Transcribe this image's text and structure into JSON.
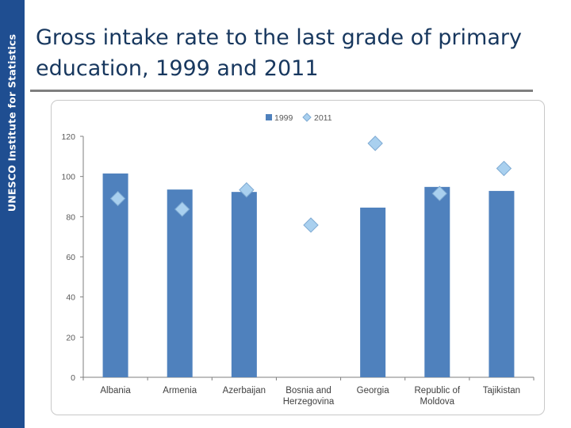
{
  "sidebar": {
    "label": "UNESCO Institute for Statistics"
  },
  "title": "Gross intake rate to the last grade of primary education, 1999 and 2011",
  "colors": {
    "sidebar": "#1f4e91",
    "series_1999": "#4f81bd",
    "series_2011": "#a9d0ef",
    "title": "#17375e"
  },
  "chart_data": {
    "type": "bar",
    "categories": [
      "Albania",
      "Armenia",
      "Azerbaijan",
      "Bosnia and Herzegovina",
      "Georgia",
      "Republic of Moldova",
      "Tajikistan"
    ],
    "category_lines": [
      [
        "Albania"
      ],
      [
        "Armenia"
      ],
      [
        "Azerbaijan"
      ],
      [
        "Bosnia and",
        "Herzegovina"
      ],
      [
        "Georgia"
      ],
      [
        "Republic of",
        "Moldova"
      ],
      [
        "Tajikistan"
      ]
    ],
    "series": [
      {
        "name": "1999",
        "mark": "bar",
        "color": "#4f81bd",
        "values": [
          101.5,
          93.5,
          92.3,
          null,
          84.5,
          94.8,
          92.8
        ]
      },
      {
        "name": "2011",
        "mark": "diamond",
        "color": "#a9d0ef",
        "values": [
          89,
          83.7,
          93.3,
          75.8,
          116.5,
          91.5,
          104
        ]
      }
    ],
    "ylim": [
      0,
      120
    ],
    "yticks": [
      0,
      20,
      40,
      60,
      80,
      100,
      120
    ],
    "legend_position": "top",
    "grid": false
  }
}
